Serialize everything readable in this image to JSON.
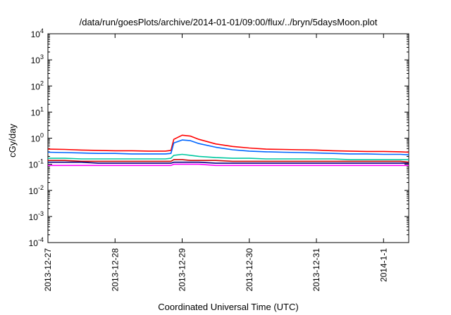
{
  "chart_data": {
    "type": "line",
    "title": "/data/run/goesPlots/archive/2014-01-01/09:00/flux/../bryn/5daysMoon.plot",
    "xlabel": "Coordinated Universal Time (UTC)",
    "ylabel": "cGy/day",
    "yscale": "log",
    "ylim": [
      0.0001,
      10000
    ],
    "y_ticks": [
      {
        "base": "10",
        "exp": "-4",
        "value": 0.0001
      },
      {
        "base": "10",
        "exp": "-3",
        "value": 0.001
      },
      {
        "base": "10",
        "exp": "-2",
        "value": 0.01
      },
      {
        "base": "10",
        "exp": "-1",
        "value": 0.1
      },
      {
        "base": "10",
        "exp": "0",
        "value": 1
      },
      {
        "base": "10",
        "exp": "1",
        "value": 10
      },
      {
        "base": "10",
        "exp": "2",
        "value": 100
      },
      {
        "base": "10",
        "exp": "3",
        "value": 1000
      },
      {
        "base": "10",
        "exp": "4",
        "value": 10000
      }
    ],
    "x_range": [
      "2013-12-27",
      "2014-01-01T09:00"
    ],
    "x_ticks": [
      {
        "label": "2013-12-27",
        "date": "2013-12-27"
      },
      {
        "label": "2013-12-28",
        "date": "2013-12-28"
      },
      {
        "label": "2013-12-29",
        "date": "2013-12-29"
      },
      {
        "label": "2013-12-30",
        "date": "2013-12-30"
      },
      {
        "label": "2013-12-31",
        "date": "2013-12-31"
      },
      {
        "label": "2014-1-1",
        "date": "2014-01-01"
      }
    ],
    "grid": false,
    "legend": "none",
    "x": [
      "2013-12-27T00:00",
      "2013-12-27T06:00",
      "2013-12-27T12:00",
      "2013-12-27T18:00",
      "2013-12-28T00:00",
      "2013-12-28T06:00",
      "2013-12-28T12:00",
      "2013-12-28T18:00",
      "2013-12-28T20:00",
      "2013-12-28T21:00",
      "2013-12-29T00:00",
      "2013-12-29T03:00",
      "2013-12-29T06:00",
      "2013-12-29T12:00",
      "2013-12-29T18:00",
      "2013-12-30T00:00",
      "2013-12-30T06:00",
      "2013-12-30T12:00",
      "2013-12-30T18:00",
      "2013-12-31T00:00",
      "2013-12-31T06:00",
      "2013-12-31T12:00",
      "2013-12-31T18:00",
      "2014-01-01T00:00",
      "2014-01-01T06:00",
      "2014-01-01T09:00"
    ],
    "series": [
      {
        "color": "#ff0000",
        "values": [
          0.38,
          0.37,
          0.35,
          0.34,
          0.33,
          0.33,
          0.32,
          0.32,
          0.34,
          0.9,
          1.3,
          1.2,
          0.9,
          0.6,
          0.48,
          0.42,
          0.38,
          0.37,
          0.36,
          0.35,
          0.33,
          0.32,
          0.31,
          0.31,
          0.3,
          0.29
        ]
      },
      {
        "color": "#0066ff",
        "values": [
          0.29,
          0.28,
          0.27,
          0.26,
          0.26,
          0.25,
          0.25,
          0.25,
          0.26,
          0.65,
          0.85,
          0.8,
          0.62,
          0.45,
          0.36,
          0.32,
          0.3,
          0.29,
          0.28,
          0.27,
          0.26,
          0.25,
          0.25,
          0.24,
          0.24,
          0.23
        ]
      },
      {
        "color": "#00c8a0",
        "values": [
          0.17,
          0.17,
          0.16,
          0.16,
          0.16,
          0.16,
          0.16,
          0.16,
          0.17,
          0.22,
          0.24,
          0.22,
          0.2,
          0.18,
          0.17,
          0.17,
          0.16,
          0.16,
          0.16,
          0.16,
          0.16,
          0.15,
          0.15,
          0.15,
          0.15,
          0.15
        ]
      },
      {
        "color": "#cc0000",
        "values": [
          0.14,
          0.14,
          0.13,
          0.13,
          0.13,
          0.13,
          0.13,
          0.13,
          0.13,
          0.15,
          0.15,
          0.14,
          0.14,
          0.14,
          0.13,
          0.13,
          0.13,
          0.13,
          0.13,
          0.13,
          0.13,
          0.13,
          0.13,
          0.13,
          0.13,
          0.12
        ]
      },
      {
        "color": "#000080",
        "values": [
          0.12,
          0.12,
          0.12,
          0.11,
          0.11,
          0.11,
          0.11,
          0.11,
          0.11,
          0.12,
          0.12,
          0.12,
          0.12,
          0.11,
          0.11,
          0.11,
          0.11,
          0.11,
          0.11,
          0.11,
          0.11,
          0.11,
          0.11,
          0.11,
          0.11,
          0.11
        ]
      },
      {
        "color": "#ff00ff",
        "values": [
          0.09,
          0.09,
          0.09,
          0.09,
          0.09,
          0.09,
          0.09,
          0.09,
          0.09,
          0.1,
          0.1,
          0.1,
          0.1,
          0.09,
          0.09,
          0.09,
          0.09,
          0.09,
          0.09,
          0.09,
          0.09,
          0.09,
          0.09,
          0.09,
          0.09,
          0.09
        ]
      }
    ]
  }
}
